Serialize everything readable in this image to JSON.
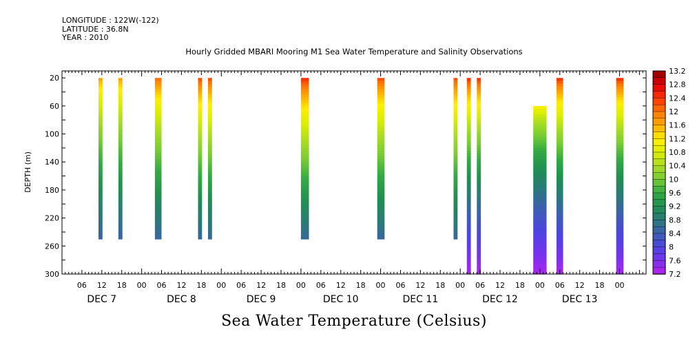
{
  "meta": {
    "longitude": "LONGITUDE : 122W(-122)",
    "latitude": "LATITUDE : 36.8N",
    "year": "YEAR : 2010"
  },
  "chart_data": {
    "type": "heatmap",
    "title": "Hourly Gridded MBARI Mooring M1 Sea Water Temperature and Salinity Observations",
    "footer_label": "Sea Water Temperature (Celsius)",
    "ylabel": "DEPTH (m)",
    "xlabel": "",
    "x_unit": "hours since DEC 6 2010 00:00",
    "xlim": [
      0,
      176
    ],
    "ylim": [
      300,
      10
    ],
    "y_ticks": [
      20,
      60,
      100,
      140,
      180,
      220,
      260,
      300
    ],
    "x_hour_ticks": [
      {
        "t": 6,
        "label": "06"
      },
      {
        "t": 12,
        "label": "12"
      },
      {
        "t": 18,
        "label": "18"
      },
      {
        "t": 24,
        "label": "00"
      },
      {
        "t": 30,
        "label": "06"
      },
      {
        "t": 36,
        "label": "12"
      },
      {
        "t": 42,
        "label": "18"
      },
      {
        "t": 48,
        "label": "00"
      },
      {
        "t": 54,
        "label": "06"
      },
      {
        "t": 60,
        "label": "12"
      },
      {
        "t": 66,
        "label": "18"
      },
      {
        "t": 72,
        "label": "00"
      },
      {
        "t": 78,
        "label": "06"
      },
      {
        "t": 84,
        "label": "12"
      },
      {
        "t": 90,
        "label": "18"
      },
      {
        "t": 96,
        "label": "00"
      },
      {
        "t": 102,
        "label": "06"
      },
      {
        "t": 108,
        "label": "12"
      },
      {
        "t": 114,
        "label": "18"
      },
      {
        "t": 120,
        "label": "00"
      },
      {
        "t": 126,
        "label": "06"
      },
      {
        "t": 132,
        "label": "12"
      },
      {
        "t": 138,
        "label": "18"
      },
      {
        "t": 144,
        "label": "00"
      },
      {
        "t": 150,
        "label": "06"
      },
      {
        "t": 156,
        "label": "12"
      },
      {
        "t": 162,
        "label": "18"
      },
      {
        "t": 168,
        "label": "00"
      }
    ],
    "x_day_labels": [
      {
        "t": 12,
        "label": "DEC  7"
      },
      {
        "t": 36,
        "label": "DEC  8"
      },
      {
        "t": 60,
        "label": "DEC  9"
      },
      {
        "t": 84,
        "label": "DEC 10"
      },
      {
        "t": 108,
        "label": "DEC 11"
      },
      {
        "t": 132,
        "label": "DEC 12"
      },
      {
        "t": 156,
        "label": "DEC 13"
      }
    ],
    "colorbar": {
      "min": 7.2,
      "max": 13.2,
      "step": 0.2,
      "labels": [
        "13.2",
        "12.8",
        "12.4",
        "12",
        "11.6",
        "11.2",
        "10.8",
        "10.4",
        "10",
        "9.6",
        "9.2",
        "8.8",
        "8.4",
        "8",
        "7.6",
        "7.2"
      ]
    },
    "profiles": [
      {
        "t_start": 11.0,
        "t_end": 12.2,
        "top": 20,
        "bottom": 250,
        "surface_temp": 11.8,
        "deep_temp": 8.0
      },
      {
        "t_start": 17.0,
        "t_end": 18.2,
        "top": 20,
        "bottom": 250,
        "surface_temp": 11.8,
        "deep_temp": 8.0
      },
      {
        "t_start": 28.0,
        "t_end": 30.0,
        "top": 20,
        "bottom": 250,
        "surface_temp": 12.2,
        "deep_temp": 8.0
      },
      {
        "t_start": 41.0,
        "t_end": 42.2,
        "top": 20,
        "bottom": 250,
        "surface_temp": 12.4,
        "deep_temp": 8.0
      },
      {
        "t_start": 44.0,
        "t_end": 45.2,
        "top": 20,
        "bottom": 250,
        "surface_temp": 12.4,
        "deep_temp": 8.0
      },
      {
        "t_start": 72.0,
        "t_end": 74.4,
        "top": 20,
        "bottom": 250,
        "surface_temp": 12.6,
        "deep_temp": 8.0
      },
      {
        "t_start": 95.0,
        "t_end": 97.2,
        "top": 20,
        "bottom": 250,
        "surface_temp": 12.4,
        "deep_temp": 8.0
      },
      {
        "t_start": 118.0,
        "t_end": 119.2,
        "top": 20,
        "bottom": 250,
        "surface_temp": 12.4,
        "deep_temp": 8.0
      },
      {
        "t_start": 122.0,
        "t_end": 123.2,
        "top": 20,
        "bottom": 300,
        "surface_temp": 12.6,
        "deep_temp": 7.3
      },
      {
        "t_start": 125.0,
        "t_end": 126.2,
        "top": 20,
        "bottom": 300,
        "surface_temp": 12.6,
        "deep_temp": 7.3
      },
      {
        "t_start": 142.0,
        "t_end": 146.0,
        "top": 60,
        "bottom": 300,
        "surface_temp": 11.3,
        "deep_temp": 7.3
      },
      {
        "t_start": 149.0,
        "t_end": 151.0,
        "top": 20,
        "bottom": 300,
        "surface_temp": 12.6,
        "deep_temp": 7.3
      },
      {
        "t_start": 167.0,
        "t_end": 169.2,
        "top": 20,
        "bottom": 300,
        "surface_temp": 12.6,
        "deep_temp": 7.3
      }
    ]
  }
}
